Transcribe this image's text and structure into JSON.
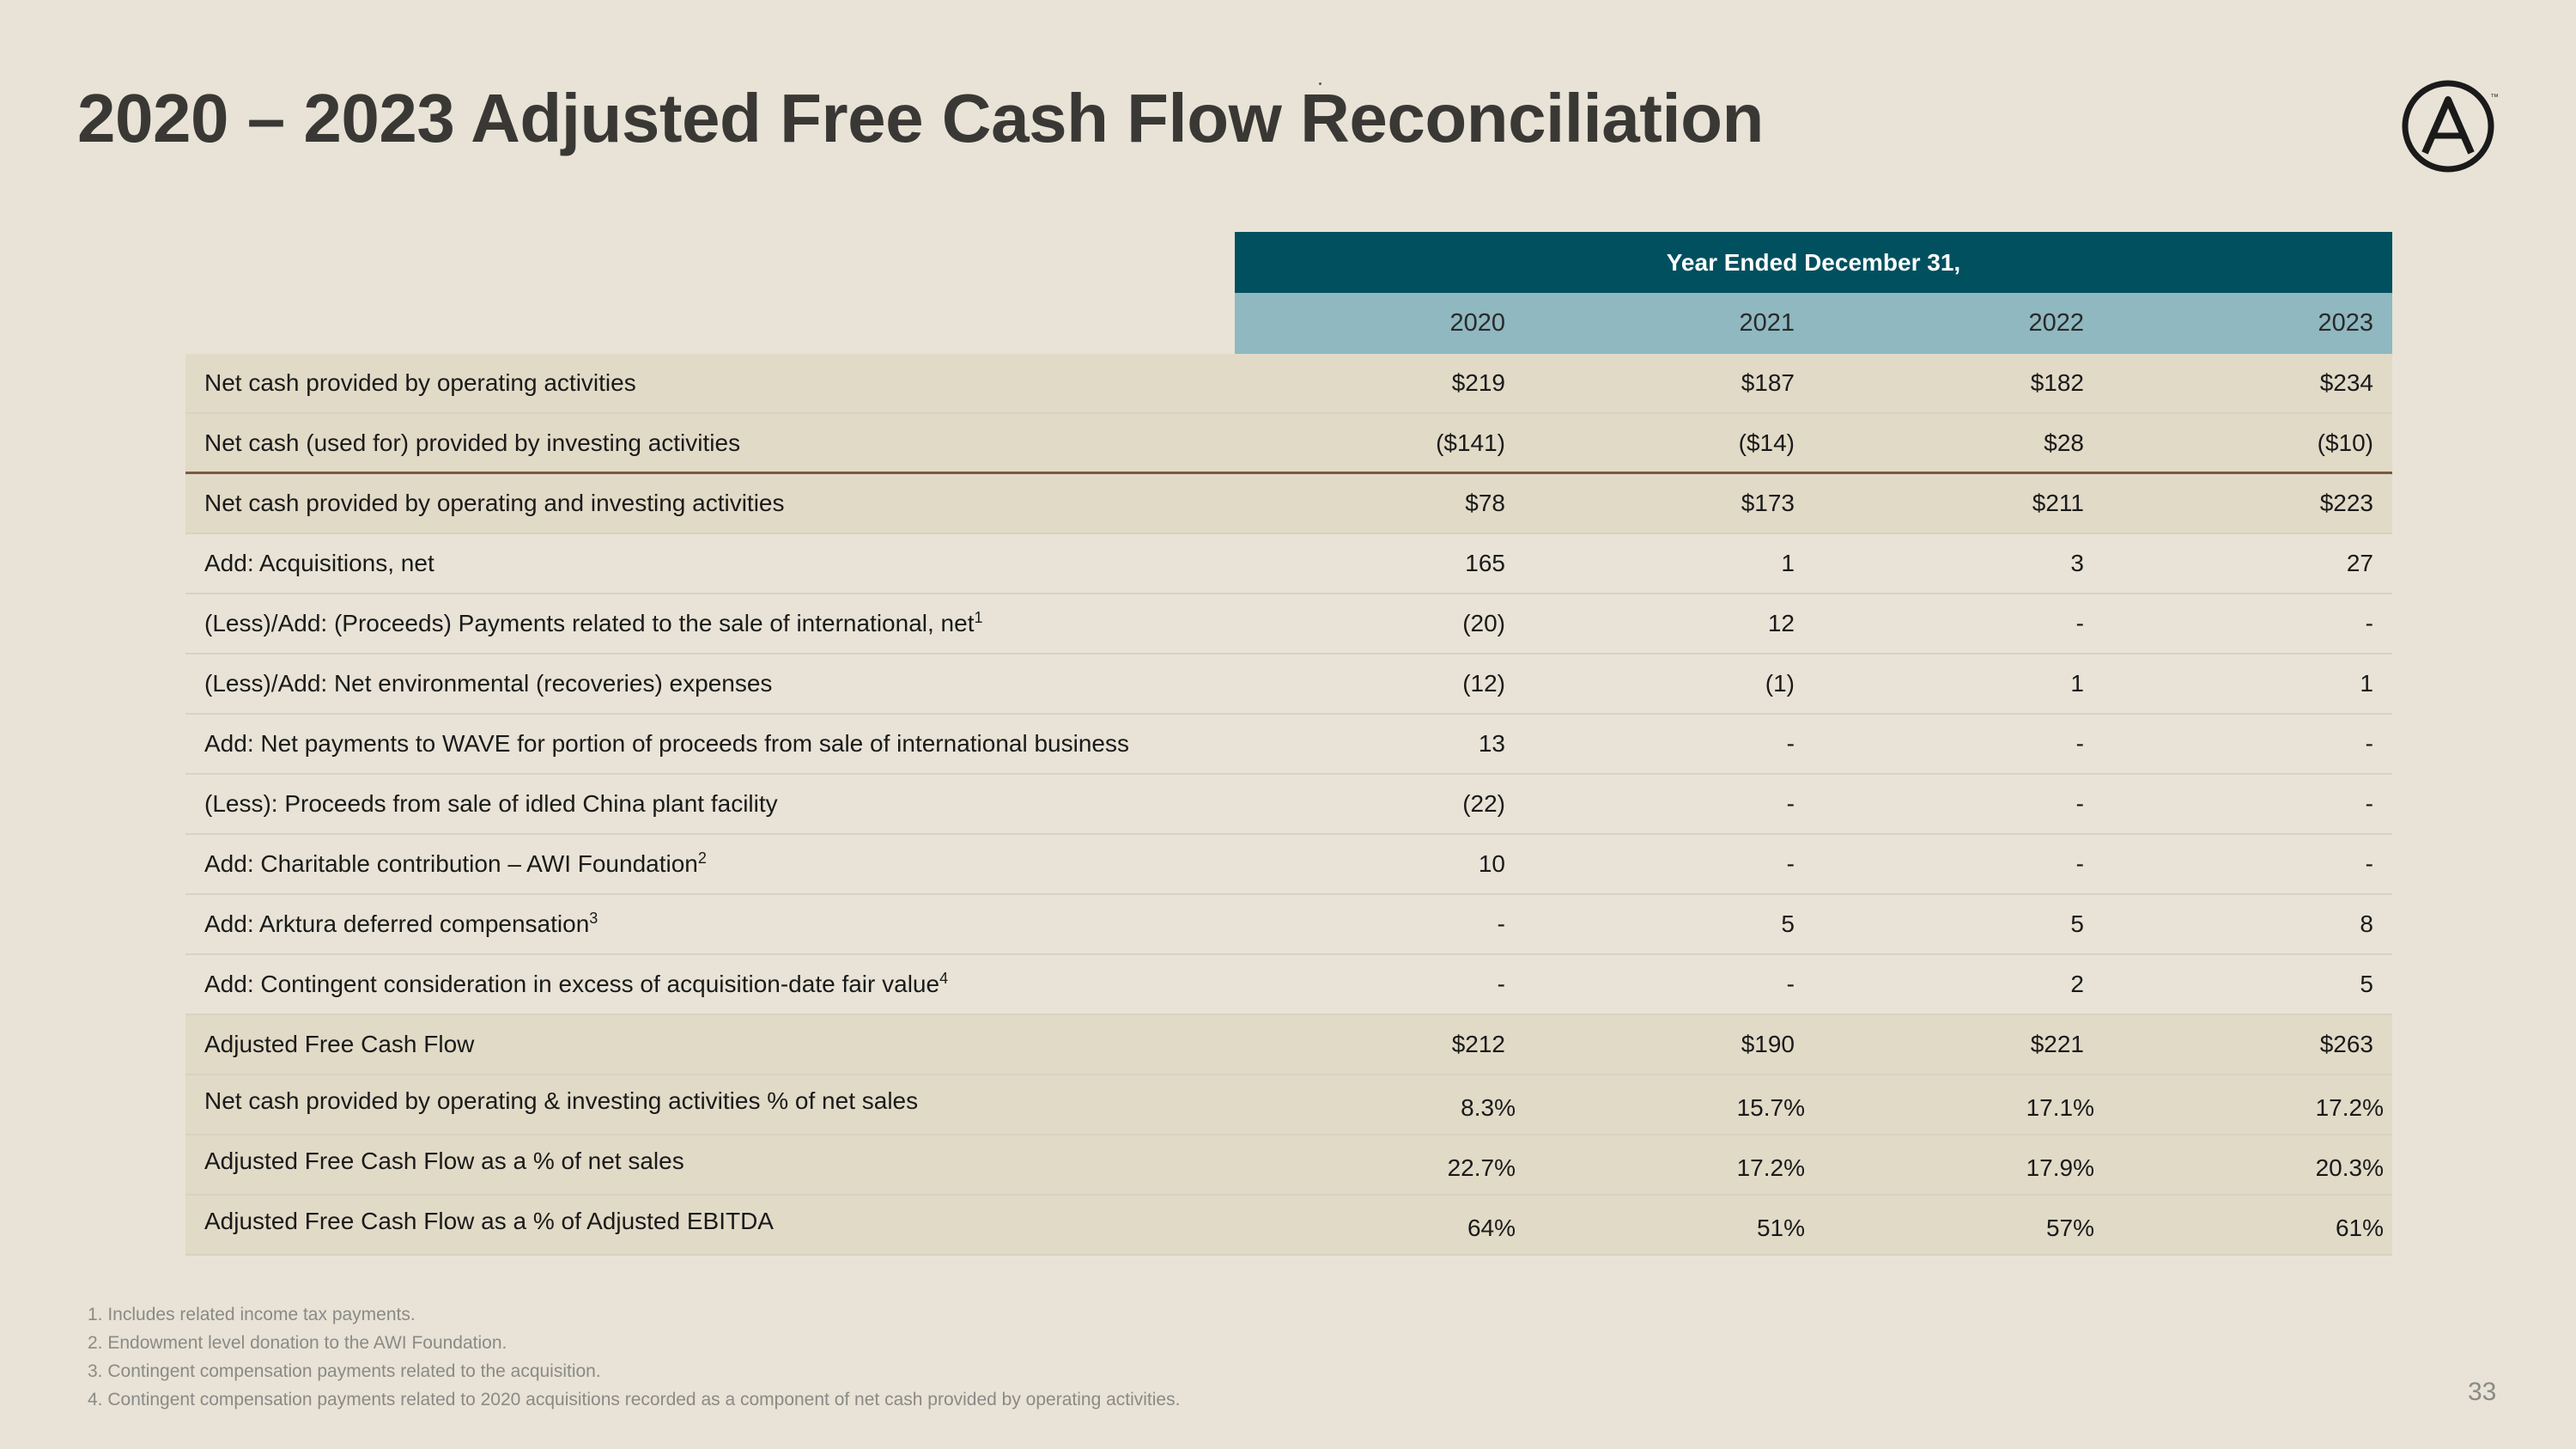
{
  "title": "2020 – 2023 Adjusted Free Cash Flow Reconciliation",
  "header": {
    "span_label": "Year Ended December 31,",
    "years": [
      "2020",
      "2021",
      "2022",
      "2023"
    ]
  },
  "rows": [
    {
      "label": "Net cash provided by operating activities",
      "sup": "",
      "values": [
        "$219",
        "$187",
        "$182",
        "$234"
      ]
    },
    {
      "label": "Net cash (used for) provided by investing activities",
      "sup": "",
      "values": [
        "($141)",
        "($14)",
        "$28",
        "($10)"
      ]
    },
    {
      "label": "Net cash provided by operating and investing activities",
      "sup": "",
      "values": [
        "$78",
        "$173",
        "$211",
        "$223"
      ]
    },
    {
      "label": "Add: Acquisitions, net",
      "sup": "",
      "values": [
        "165",
        "1",
        "3",
        "27"
      ]
    },
    {
      "label": "(Less)/Add: (Proceeds) Payments related to the sale of international, net",
      "sup": "1",
      "values": [
        "(20)",
        "12",
        "-",
        "-"
      ]
    },
    {
      "label": "(Less)/Add: Net environmental (recoveries) expenses",
      "sup": "",
      "values": [
        "(12)",
        "(1)",
        "1",
        "1"
      ]
    },
    {
      "label": "Add: Net payments to WAVE for portion of proceeds from sale of international business",
      "sup": "",
      "values": [
        "13",
        "-",
        "-",
        "-"
      ]
    },
    {
      "label": "(Less): Proceeds from sale of idled China plant facility",
      "sup": "",
      "values": [
        "(22)",
        "-",
        "-",
        "-"
      ]
    },
    {
      "label": "Add: Charitable contribution – AWI Foundation",
      "sup": "2",
      "values": [
        "10",
        "-",
        "-",
        "-"
      ]
    },
    {
      "label": "Add: Arktura deferred compensation",
      "sup": "3",
      "values": [
        "-",
        "5",
        "5",
        "8"
      ]
    },
    {
      "label": "Add: Contingent consideration in excess of acquisition-date fair value",
      "sup": "4",
      "values": [
        "-",
        "-",
        "2",
        "5"
      ]
    },
    {
      "label": "Adjusted Free Cash Flow",
      "sup": "",
      "values": [
        "$212",
        "$190",
        "$221",
        "$263"
      ]
    },
    {
      "label": "Net cash provided by operating & investing activities % of net sales",
      "sup": "",
      "values": [
        "8.3%",
        "15.7%",
        "17.1%",
        "17.2%"
      ]
    },
    {
      "label": "Adjusted Free Cash Flow as a % of net sales",
      "sup": "",
      "values": [
        "22.7%",
        "17.2%",
        "17.9%",
        "20.3%"
      ]
    },
    {
      "label": "Adjusted Free Cash Flow as a % of Adjusted EBITDA",
      "sup": "",
      "values": [
        "64%",
        "51%",
        "57%",
        "61%"
      ]
    }
  ],
  "footnotes": [
    "1. Includes related income tax payments.",
    "2. Endowment level donation to the AWI Foundation.",
    "3. Contingent compensation payments related to the acquisition.",
    "4. Contingent compensation payments related to 2020 acquisitions recorded as a component of net cash provided by operating activities."
  ],
  "page_number": "33",
  "logo": {
    "icon": "armstrong-a-logo-icon",
    "mark": "™"
  },
  "colors": {
    "header_dark": "#00505F",
    "header_light": "#8FB8C0",
    "row_dark": "#E1DAC7",
    "background": "#E8E3D6"
  }
}
